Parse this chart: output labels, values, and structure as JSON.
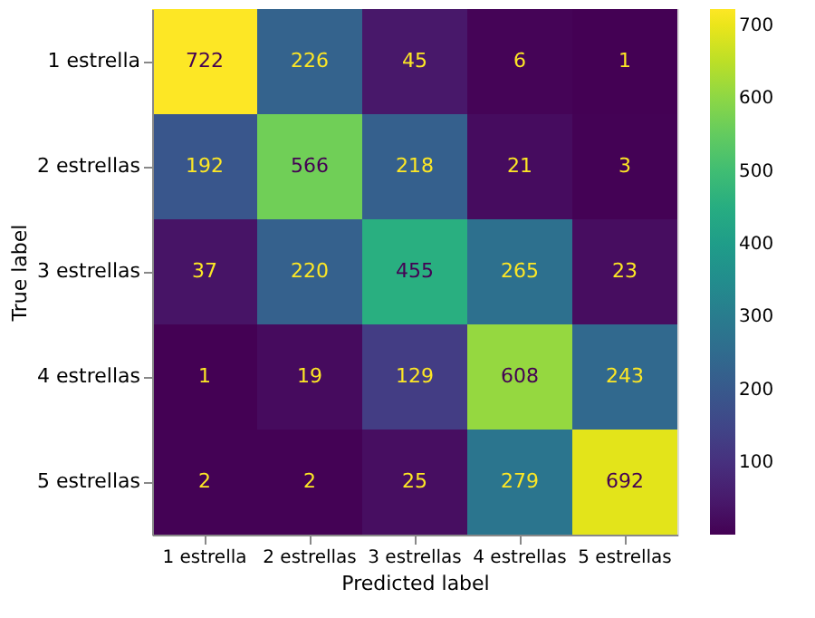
{
  "chart_data": {
    "type": "heatmap",
    "xlabel": "Predicted label",
    "ylabel": "True label",
    "categories": [
      "1 estrella",
      "2 estrellas",
      "3 estrellas",
      "4 estrellas",
      "5 estrellas"
    ],
    "y_categories": [
      "1 estrella",
      "2 estrellas",
      "3 estrellas",
      "4 estrellas",
      "5 estrellas"
    ],
    "cells": [
      [
        722,
        226,
        45,
        6,
        1
      ],
      [
        192,
        566,
        218,
        21,
        3
      ],
      [
        37,
        220,
        455,
        265,
        23
      ],
      [
        1,
        19,
        129,
        608,
        243
      ],
      [
        2,
        2,
        25,
        279,
        692
      ]
    ],
    "clim": [
      1,
      722
    ],
    "cticks": [
      100,
      200,
      300,
      400,
      500,
      600,
      700
    ],
    "data_labels": true,
    "grid": false
  }
}
